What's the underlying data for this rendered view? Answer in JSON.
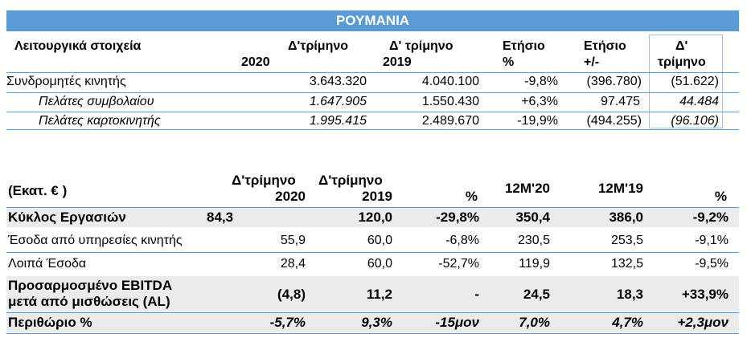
{
  "table1": {
    "title": "ΡΟΥΜΑΝΙΑ",
    "headers": {
      "label": "Λειτουργικά στοιχεία",
      "c1a": "Δ'τρίμηνο",
      "c1b": "2020",
      "c2a": "Δ' τρίμηνο",
      "c2b": "2019",
      "c3a": "Ετήσιο",
      "c3b": "%",
      "c4a": "Ετήσιο",
      "c4b": "+/-",
      "c5a": "Δ'",
      "c5b": "τρίμηνο"
    },
    "rows": [
      {
        "label": "Συνδρομητές κινητής",
        "q4_2020": "3.643.320",
        "q4_2019": "4.040.100",
        "yoy_pct": "-9,8%",
        "yoy_abs": "(396.780)",
        "q4": "(51.622)"
      },
      {
        "label": "Πελάτες συμβολαίου",
        "q4_2020": "1.647.905",
        "q4_2019": "1.550.430",
        "yoy_pct": "+6,3%",
        "yoy_abs": "97.475",
        "q4": "44.484"
      },
      {
        "label": "Πελάτες καρτοκινητής",
        "q4_2020": "1.995.415",
        "q4_2019": "2.489.670",
        "yoy_pct": "-19,9%",
        "yoy_abs": "(494.255)",
        "q4": "(96.106)"
      }
    ]
  },
  "table2": {
    "headers": {
      "label": "(Εκατ. € )",
      "c1a": "Δ'τρίμηνο",
      "c1b": "2020",
      "c2a": "Δ'τρίμηνο",
      "c2b": "2019",
      "c3": "%",
      "c4": "12M'20",
      "c5": "12M'19",
      "c6": "%"
    },
    "rows": [
      {
        "label": "Κύκλος Εργασιών",
        "v1": "84,3",
        "v2": "120,0",
        "v3": "-29,8%",
        "v4": "350,4",
        "v5": "386,0",
        "v6": "-9,2%"
      },
      {
        "label": "Έσοδα από υπηρεσίες κινητής",
        "v1": "55,9",
        "v2": "60,0",
        "v3": "-6,8%",
        "v4": "230,5",
        "v5": "253,5",
        "v6": "-9,1%"
      },
      {
        "label": "Λοιπά Έσοδα",
        "v1": "28,4",
        "v2": "60,0",
        "v3": "-52,7%",
        "v4": "119,9",
        "v5": "132,5",
        "v6": "-9,5%"
      },
      {
        "label_a": "Προσαρμοσμένο EBITDA",
        "label_b": "μετά από μισθώσεις (AL)",
        "v1": "(4,8)",
        "v2": "11,2",
        "v3": "-",
        "v4": "24,5",
        "v5": "18,3",
        "v6": "+33,9%"
      },
      {
        "label": "Περιθώριο %",
        "v1": "-5,7%",
        "v2": "9,3%",
        "v3": "-15μον",
        "v4": "7,0%",
        "v5": "4,7%",
        "v6": "+2,3μον"
      }
    ]
  }
}
